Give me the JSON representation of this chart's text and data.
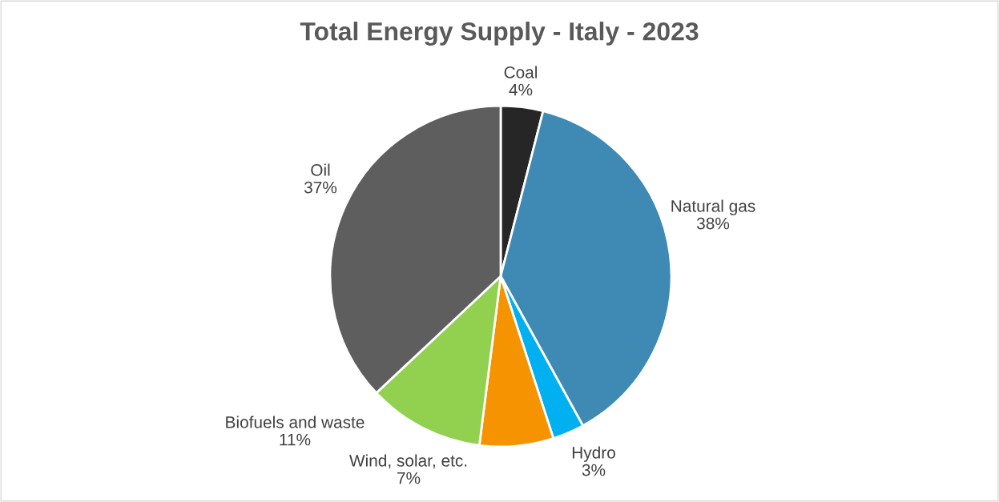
{
  "chart_data": {
    "type": "pie",
    "title": "Total Energy Supply - Italy - 2023",
    "categories": [
      "Coal",
      "Natural gas",
      "Hydro",
      "Wind, solar, etc.",
      "Biofuels and waste",
      "Oil"
    ],
    "values": [
      4,
      38,
      3,
      7,
      11,
      37
    ],
    "value_labels": [
      "4%",
      "38%",
      "3%",
      "7%",
      "11%",
      "37%"
    ],
    "colors": [
      "#262626",
      "#3e8ab4",
      "#00b0f0",
      "#f59400",
      "#92d050",
      "#5e5e5e"
    ],
    "legend": false
  }
}
